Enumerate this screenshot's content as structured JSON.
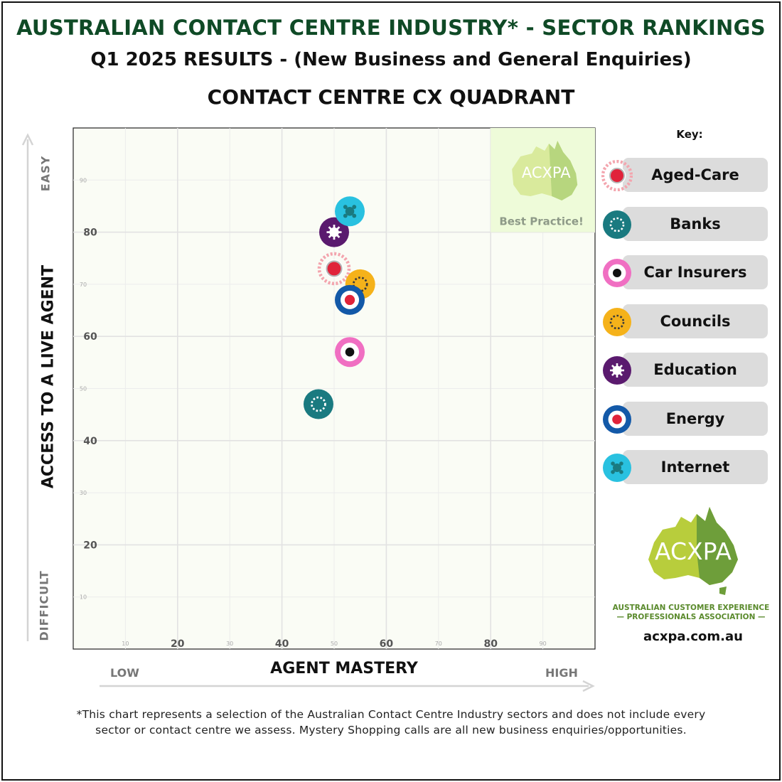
{
  "titles": {
    "line1": "AUSTRALIAN CONTACT CENTRE INDUSTRY* - SECTOR RANKINGS",
    "line2": "Q1 2025 RESULTS - (New Business and General Enquiries)",
    "line3": "CONTACT CENTRE CX QUADRANT"
  },
  "axes": {
    "y_label": "ACCESS TO A LIVE AGENT",
    "y_top_label": "EASY",
    "y_bottom_label": "DIFFICULT",
    "x_label": "AGENT MASTERY",
    "x_left_label": "LOW",
    "x_right_label": "HIGH"
  },
  "best_practice": {
    "logo_text": "ACXPA",
    "label": "Best Practice!"
  },
  "key": {
    "title": "Key:"
  },
  "logo": {
    "text": "ACXPA",
    "org_line1": "AUSTRALIAN CUSTOMER EXPERIENCE",
    "org_line2": "— PROFESSIONALS ASSOCIATION —",
    "website": "acxpa.com.au"
  },
  "footnote": {
    "line1": "*This chart represents a selection of the Australian Contact Centre Industry sectors and does not include every",
    "line2": "sector or contact centre we assess. Mystery Shopping calls are all new business enquiries/opportunities."
  },
  "chart_data": {
    "type": "scatter",
    "xlim": [
      0,
      100
    ],
    "ylim": [
      0,
      100
    ],
    "major_ticks": [
      20,
      40,
      60,
      80
    ],
    "minor_ticks": [
      10,
      30,
      50,
      70,
      90
    ],
    "grid": true,
    "best_practice_quadrant": {
      "x": [
        80,
        100
      ],
      "y": [
        80,
        100
      ]
    },
    "legend_position": "right",
    "series": [
      {
        "name": "Aged-Care",
        "x": 50,
        "y": 73,
        "icon": "aged-care-icon",
        "color": "#e0233a",
        "ring": "#f3a5ae"
      },
      {
        "name": "Banks",
        "x": 47,
        "y": 47,
        "icon": "banks-icon",
        "color": "#1a7a80",
        "ring": "#1a7a80"
      },
      {
        "name": "Car Insurers",
        "x": 53,
        "y": 57,
        "icon": "car-insurers-icon",
        "color": "#f06fc2",
        "ring": "#f06fc2"
      },
      {
        "name": "Councils",
        "x": 55,
        "y": 70,
        "icon": "councils-icon",
        "color": "#f5b21a",
        "ring": "#f5b21a"
      },
      {
        "name": "Education",
        "x": 50,
        "y": 80,
        "icon": "education-icon",
        "color": "#5a1a6e",
        "ring": "#5a1a6e"
      },
      {
        "name": "Energy",
        "x": 53,
        "y": 67,
        "icon": "energy-icon",
        "color": "#1359a8",
        "ring": "#1359a8"
      },
      {
        "name": "Internet",
        "x": 53,
        "y": 84,
        "icon": "internet-icon",
        "color": "#29c1e0",
        "ring": "#29c1e0"
      }
    ]
  }
}
